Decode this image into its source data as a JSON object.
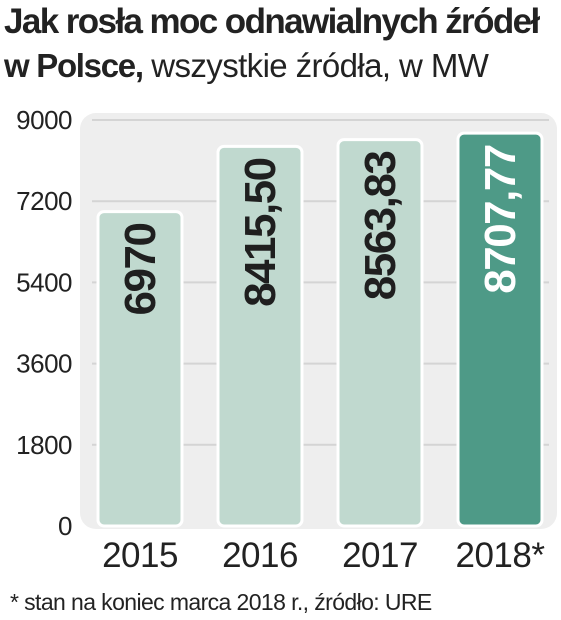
{
  "title": {
    "line1": "Jak rosła moc odnawialnych źródeł",
    "line2_bold": "w Polsce,",
    "line2_regular": " wszystkie źródła, w MW"
  },
  "footnote": "* stan na koniec marca 2018 r., źródło: URE",
  "chart_data": {
    "type": "bar",
    "title": "Jak rosła moc odnawialnych źródeł w Polsce, wszystkie źródła, w MW",
    "categories": [
      "2015",
      "2016",
      "2017",
      "2018*"
    ],
    "values": [
      6970,
      8415.5,
      8563.83,
      8707.77
    ],
    "value_labels": [
      "6970",
      "8415,50",
      "8563,83",
      "8707,77"
    ],
    "yticks": [
      "0",
      "1800",
      "3600",
      "5400",
      "7200",
      "9000"
    ],
    "ylim": [
      0,
      9000
    ],
    "grid": true,
    "colors": {
      "bar": "#c0d9cf",
      "bar_highlight": "#4e9a87",
      "bar_border": "#ffffff",
      "label": "#1f1f1f",
      "label_highlight": "#ffffff",
      "plot_bg": "#eeeeee",
      "gridline": "#d4d4d4"
    },
    "highlight_index": 3
  }
}
